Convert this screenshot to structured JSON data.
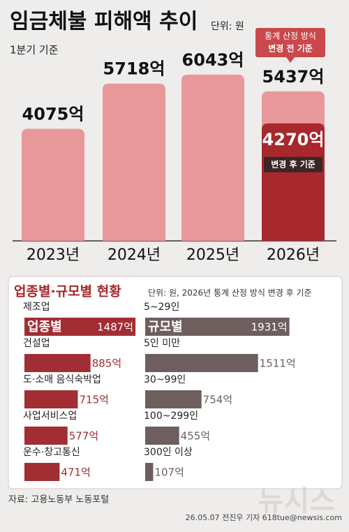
{
  "header": {
    "title": "임금체불 피해액 추이",
    "unit": "단위: 원",
    "subtitle": "1분기 기준"
  },
  "chart_data": [
    {
      "type": "bar",
      "categories": [
        "2023년",
        "2024년",
        "2025년",
        "2026년"
      ],
      "series": [
        {
          "color": "#e8989b",
          "values": [
            4075,
            5718,
            6043,
            5437
          ],
          "value_labels": [
            "4075억",
            "5718억",
            "6043억",
            "5437억"
          ]
        },
        {
          "color": "#a8282d",
          "values": [
            null,
            null,
            null,
            4270
          ],
          "value_labels": [
            null,
            null,
            null,
            "4270억"
          ]
        }
      ],
      "annotations": [
        "통계 산정 방식",
        "변경 전 기준",
        "변경 후 기준"
      ]
    },
    {
      "type": "hbar",
      "title": "업종별·규모별 현황",
      "subtitle": "단위: 원, 2026년 통계 산정 방식 변경 후 기준",
      "bar_label": "업종별",
      "categories": [
        "제조업",
        "건설업",
        "도·소매 음식숙박업",
        "사업서비스업",
        "운수·창고통신"
      ],
      "values": [
        1487,
        885,
        715,
        577,
        471
      ],
      "value_labels": [
        "1487억",
        "885억",
        "715억",
        "577억",
        "471억"
      ],
      "color": "#a22e33"
    },
    {
      "type": "hbar",
      "bar_label": "규모별",
      "categories": [
        "5~29인",
        "5인 미만",
        "30~99인",
        "100~299인",
        "300인 이상"
      ],
      "values": [
        1931,
        1511,
        754,
        455,
        107
      ],
      "value_labels": [
        "1931억",
        "1511억",
        "754억",
        "455억",
        "107억"
      ],
      "color": "#6e5e5e"
    }
  ],
  "footer": {
    "source": "자료: 고용노동부 노동포털",
    "credit": "26.05.07 전진우 기자 618tue@newsis.com",
    "logo": "뉴시스"
  }
}
